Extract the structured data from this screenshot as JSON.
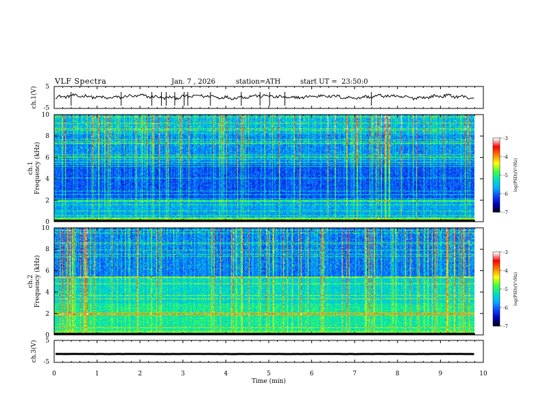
{
  "header": {
    "title": "VLF Spectra",
    "date": "Jan. 7 , 2026",
    "station": "station=ATH",
    "start_ut": "start UT =  23:50:0"
  },
  "colors": {
    "trace": "#000000",
    "cmap": [
      "#000000",
      "#0000b0",
      "#1040ff",
      "#00b0ff",
      "#00e0c0",
      "#40ff40",
      "#ffff00",
      "#ff8000",
      "#ff0000",
      "#ffffff"
    ]
  },
  "chart_data": [
    {
      "name": "ch.1 waveform",
      "type": "line",
      "ylabel": "ch.1(V)",
      "yticks": [
        "5",
        "-5"
      ],
      "ylim": [
        -5,
        5
      ],
      "approx_level": 0.3
    },
    {
      "name": "ch.1 spectrogram",
      "type": "heatmap",
      "ylabel": "ch.1\nFrequency (kHz)",
      "ylabel_top": "ch.1",
      "ylabel_bottom": "Frequency (kHz)",
      "yticks": [
        "0",
        "2",
        "4",
        "6",
        "8",
        "10"
      ],
      "ylim": [
        0,
        10
      ],
      "colorbar": {
        "label": "log(PSD)(V²/Hz)",
        "ticks": [
          "-3",
          "-4",
          "-5",
          "-6",
          "-7"
        ],
        "range": [
          -7,
          -3
        ]
      }
    },
    {
      "name": "ch.2 spectrogram",
      "type": "heatmap",
      "ylabel": "ch.2\nFrequency (kHz)",
      "ylabel_top": "ch.2",
      "ylabel_bottom": "Frequency (kHz)",
      "yticks": [
        "0",
        "2",
        "4",
        "6",
        "8",
        "10"
      ],
      "ylim": [
        0,
        10
      ],
      "colorbar": {
        "label": "log(PSD)(V²/Hz)",
        "ticks": [
          "-3",
          "-4",
          "-5",
          "-6",
          "-7"
        ],
        "range": [
          -7,
          -3
        ]
      }
    },
    {
      "name": "ch.3 waveform",
      "type": "line",
      "ylabel": "ch.3(V)",
      "yticks": [
        "5",
        "-5"
      ],
      "ylim": [
        -5,
        5
      ],
      "approx_level": -1.2
    }
  ],
  "xaxis": {
    "label": "Time (min)",
    "ticks": [
      "0",
      "1",
      "2",
      "3",
      "4",
      "5",
      "6",
      "7",
      "8",
      "9",
      "10"
    ],
    "xlim": [
      0,
      10
    ],
    "data_end": 9.8
  }
}
